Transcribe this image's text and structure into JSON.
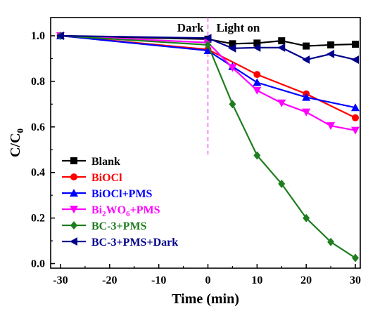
{
  "chart_data": {
    "type": "line",
    "xlabel": "Time (min)",
    "ylabel_main": "C/C",
    "ylabel_sub": "0",
    "xlim": [
      -32,
      31
    ],
    "ylim": [
      -0.02,
      1.08
    ],
    "xticks": [
      -30,
      -20,
      -10,
      0,
      10,
      20,
      30
    ],
    "yticks": [
      0.0,
      0.2,
      0.4,
      0.6,
      0.8,
      1.0
    ],
    "ytick_labels": [
      "0.0",
      "0.2",
      "0.4",
      "0.6",
      "0.8",
      "1.0"
    ],
    "annotations": {
      "dark": "Dark",
      "light": "Light on",
      "divider_x": 0
    },
    "legend_position": "bottom-left",
    "series": [
      {
        "name": "Blank",
        "color": "#000000",
        "marker": "square",
        "x": [
          -30,
          0,
          5,
          10,
          15,
          20,
          25,
          30
        ],
        "y": [
          1.0,
          0.985,
          0.965,
          0.968,
          0.978,
          0.955,
          0.96,
          0.963
        ]
      },
      {
        "name": "BiOCl",
        "color": "#ff0000",
        "marker": "circle",
        "x": [
          -30,
          0,
          10,
          20,
          30
        ],
        "y": [
          1.0,
          0.94,
          0.83,
          0.745,
          0.64
        ]
      },
      {
        "name": "BiOCl+PMS",
        "color": "#0000ff",
        "marker": "triangle-up",
        "x": [
          -30,
          0,
          5,
          10,
          20,
          30
        ],
        "y": [
          1.0,
          0.935,
          0.865,
          0.795,
          0.73,
          0.685
        ]
      },
      {
        "name": "Bi2WO6+PMS",
        "name_parts": [
          "Bi",
          "2",
          "WO",
          "6",
          "+PMS"
        ],
        "color": "#ff00ff",
        "marker": "triangle-down",
        "x": [
          -30,
          0,
          5,
          10,
          15,
          20,
          25,
          30
        ],
        "y": [
          1.0,
          0.97,
          0.86,
          0.76,
          0.705,
          0.665,
          0.605,
          0.585
        ]
      },
      {
        "name": "BC-3+PMS",
        "color": "#1e7d1e",
        "marker": "diamond",
        "x": [
          -30,
          0,
          5,
          10,
          15,
          20,
          25,
          30
        ],
        "y": [
          1.0,
          0.96,
          0.7,
          0.475,
          0.35,
          0.2,
          0.095,
          0.025
        ]
      },
      {
        "name": "BC-3+PMS+Dark",
        "color": "#00008b",
        "marker": "triangle-left",
        "x": [
          -30,
          0,
          5,
          10,
          15,
          20,
          25,
          30
        ],
        "y": [
          1.0,
          0.99,
          0.945,
          0.948,
          0.948,
          0.895,
          0.92,
          0.895
        ]
      }
    ]
  }
}
